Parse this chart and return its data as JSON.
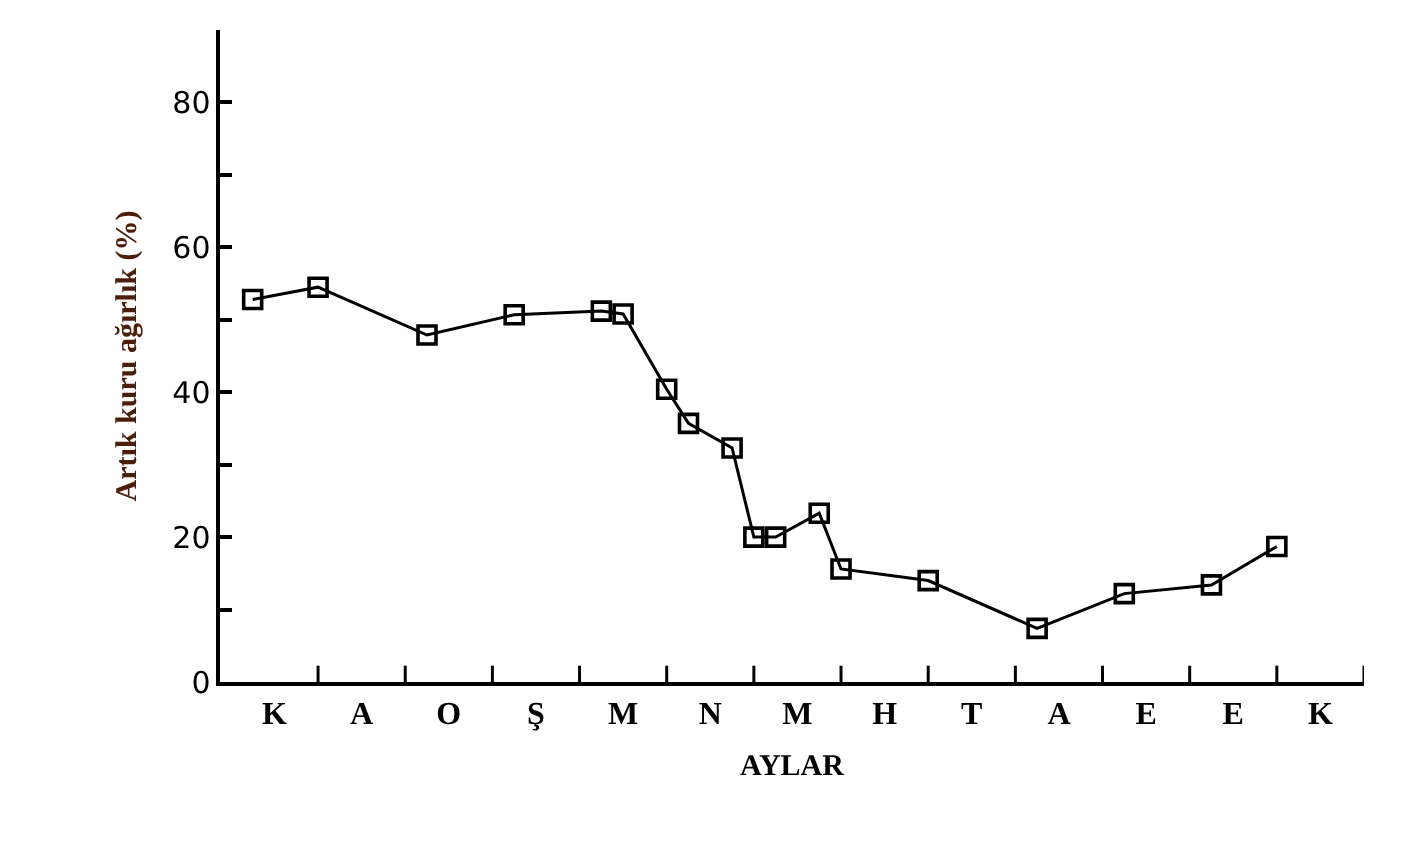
{
  "chart_data": {
    "type": "line",
    "xlabel": "AYLAR",
    "ylabel": "Artık kuru ağırlık (%)",
    "categories": [
      null,
      null,
      "K",
      null,
      null,
      null,
      "A",
      null,
      null,
      null,
      "O",
      null,
      null,
      null,
      "Ş",
      null,
      null,
      null,
      "M",
      null,
      null,
      null,
      "N",
      null,
      null,
      null,
      "M",
      null,
      null,
      null,
      "H",
      null,
      null,
      null,
      "T",
      null,
      null,
      null,
      "A",
      null,
      null,
      null,
      "E",
      null,
      null,
      null,
      "E",
      null,
      null,
      null,
      "K",
      null
    ],
    "series": [
      {
        "color": "#000000",
        "values": [
          null,
          52.8,
          null,
          null,
          54.5,
          null,
          null,
          null,
          null,
          47.9,
          null,
          null,
          null,
          50.7,
          null,
          null,
          null,
          51.2,
          50.8,
          null,
          40.4,
          35.7,
          null,
          32.3,
          20.0,
          20.0,
          null,
          23.3,
          15.6,
          null,
          null,
          null,
          14.0,
          null,
          null,
          null,
          null,
          7.4,
          null,
          null,
          null,
          12.2,
          null,
          null,
          null,
          13.4,
          null,
          null,
          18.7,
          null,
          null,
          null
        ]
      }
    ],
    "ylim": [
      0,
      90
    ],
    "yticks": [
      0,
      {
        "value": 10,
        "label": null
      },
      20,
      {
        "value": 30,
        "label": null
      },
      40,
      {
        "value": 50,
        "label": null
      },
      60,
      {
        "value": 70,
        "label": null
      },
      80
    ],
    "grid": false,
    "marker": "square",
    "line_style": "solid"
  }
}
